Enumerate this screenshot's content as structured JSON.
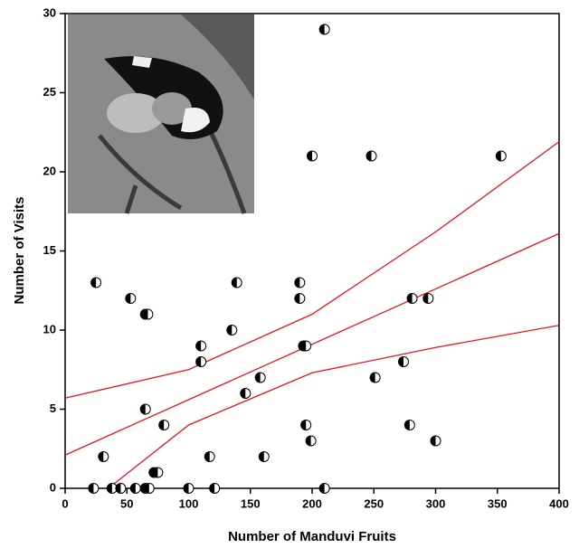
{
  "chart_data": {
    "type": "scatter",
    "xlabel": "Number of Manduvi Fruits",
    "ylabel": "Number of Visits",
    "xlim": [
      0,
      400
    ],
    "ylim": [
      0,
      30
    ],
    "xticks": [
      0,
      50,
      100,
      150,
      200,
      250,
      300,
      350,
      400
    ],
    "yticks": [
      0,
      5,
      10,
      15,
      20,
      25,
      30
    ],
    "series": [
      {
        "type": "scatter",
        "color": "#000000",
        "x": [
          210,
          200,
          248,
          353,
          25,
          139,
          190,
          53,
          190,
          281,
          294,
          65,
          67,
          135,
          110,
          193,
          195,
          110,
          274,
          158,
          251,
          146,
          65,
          195,
          80,
          279,
          199,
          300,
          31,
          117,
          161,
          72,
          75,
          23,
          38,
          45,
          57,
          65,
          68,
          100,
          121,
          210
        ],
        "y": [
          29,
          21,
          21,
          21,
          13,
          13,
          13,
          12,
          12,
          12,
          12,
          11,
          11,
          10,
          9,
          9,
          9,
          8,
          8,
          7,
          7,
          6,
          5,
          4,
          4,
          4,
          3,
          3,
          2,
          2,
          2,
          1,
          1,
          0,
          0,
          0,
          0,
          0,
          0,
          0,
          0,
          0
        ]
      },
      {
        "type": "line",
        "color": "#e8141c",
        "x": [
          0,
          400
        ],
        "y": [
          2.1,
          16.1
        ]
      },
      {
        "type": "line",
        "color": "#e8141c",
        "x": [
          0,
          100,
          200,
          300,
          400
        ],
        "y": [
          5.7,
          7.5,
          11.0,
          16.2,
          21.9
        ]
      },
      {
        "type": "line",
        "color": "#e8141c",
        "x": [
          35,
          100,
          200,
          300,
          400
        ],
        "y": [
          0,
          4.0,
          7.3,
          8.9,
          10.3
        ]
      }
    ]
  }
}
